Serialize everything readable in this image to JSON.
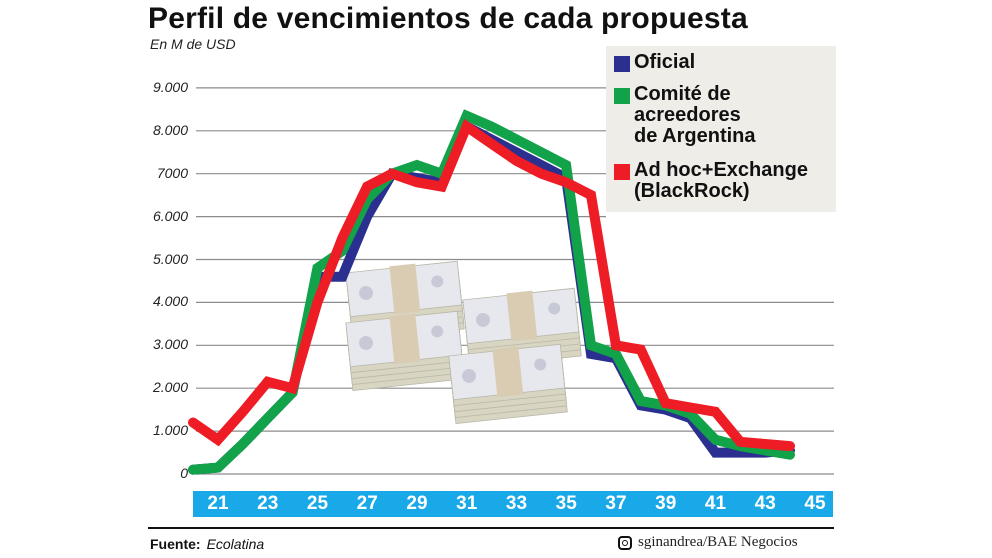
{
  "header": {
    "title": "Perfil de vencimientos de cada propuesta",
    "subtitle": "En M de USD"
  },
  "legend": {
    "items": [
      {
        "label": "Oficial",
        "color": "#2b2f8f"
      },
      {
        "label": "Comité de\nacreedores\nde Argentina",
        "color": "#12a24a"
      },
      {
        "label": "Ad hoc+Exchange\n(BlackRock)",
        "color": "#ee1c25"
      }
    ]
  },
  "footer": {
    "source_label": "Fuente:",
    "source_value": "Ecolatina",
    "credit": "sginandrea/BAE Negocios",
    "credit_icon": "instagram-icon"
  },
  "colors": {
    "axis_band": "#19a9e8",
    "gridline": "#8c8c8c",
    "legend_bg": "#efede8"
  },
  "chart_data": {
    "type": "line",
    "title": "Perfil de vencimientos de cada propuesta",
    "subtitle": "En M de USD",
    "xlabel": "",
    "ylabel": "En M de USD",
    "ylim": [
      0,
      9000
    ],
    "yticks": [
      "0",
      "1.000",
      "2.000",
      "3.000",
      "4.000",
      "5.000",
      "6.000",
      "7000",
      "8.000",
      "9.000"
    ],
    "xtick_labels": [
      "21",
      "23",
      "25",
      "27",
      "29",
      "31",
      "33",
      "35",
      "37",
      "39",
      "41",
      "43",
      "45"
    ],
    "grid": true,
    "legend_position": "top-right",
    "x": [
      2020,
      2021,
      2022,
      2023,
      2024,
      2025,
      2026,
      2027,
      2028,
      2029,
      2030,
      2031,
      2032,
      2033,
      2034,
      2035,
      2036,
      2037,
      2038,
      2039,
      2040,
      2041,
      2042,
      2043,
      2044
    ],
    "series": [
      {
        "name": "Oficial",
        "color": "#2b2f8f",
        "values": [
          100,
          150,
          700,
          1300,
          1900,
          4600,
          4600,
          6000,
          7000,
          6900,
          6800,
          8100,
          7800,
          7500,
          7200,
          6900,
          2800,
          2700,
          1600,
          1500,
          1300,
          500,
          500,
          500,
          550
        ]
      },
      {
        "name": "Comité de acreedores de Argentina",
        "color": "#12a24a",
        "values": [
          100,
          150,
          700,
          1300,
          1900,
          4800,
          5200,
          6400,
          7000,
          7200,
          7000,
          8350,
          8100,
          7800,
          7500,
          7200,
          3000,
          2800,
          1700,
          1600,
          1400,
          800,
          650,
          550,
          450
        ]
      },
      {
        "name": "Ad hoc+Exchange (BlackRock)",
        "color": "#ee1c25",
        "values": [
          1200,
          800,
          1450,
          2150,
          2000,
          4000,
          5500,
          6700,
          7000,
          6800,
          6700,
          8100,
          7700,
          7300,
          7000,
          6800,
          6500,
          3000,
          2900,
          1650,
          1550,
          1450,
          750,
          700,
          650
        ]
      }
    ]
  }
}
